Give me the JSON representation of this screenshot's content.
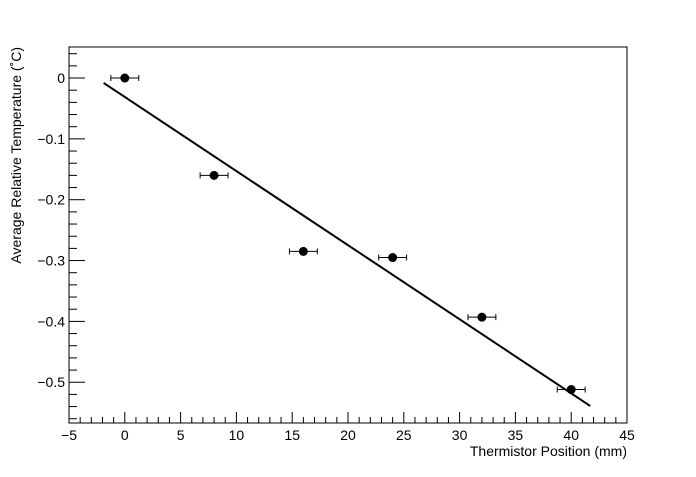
{
  "chart_data": {
    "type": "scatter",
    "title": "",
    "xlabel": "Thermistor Position (mm)",
    "ylabel": "Average Relative Temperature (˚C)",
    "xlim": [
      -5,
      45
    ],
    "ylim": [
      -0.567,
      0.051
    ],
    "xticks": [
      -5,
      0,
      5,
      10,
      15,
      20,
      25,
      30,
      35,
      40,
      45
    ],
    "xtick_labels": [
      "−5",
      "0",
      "5",
      "10",
      "15",
      "20",
      "25",
      "30",
      "35",
      "40",
      "45"
    ],
    "yticks": [
      0,
      -0.1,
      -0.2,
      -0.3,
      -0.4,
      -0.5
    ],
    "ytick_labels": [
      "0",
      "−0.1",
      "−0.2",
      "−0.3",
      "−0.4",
      "−0.5"
    ],
    "grid": false,
    "points": [
      {
        "x": 0,
        "y": 0,
        "xerr": 1.25
      },
      {
        "x": 8,
        "y": -0.16,
        "xerr": 1.25
      },
      {
        "x": 16,
        "y": -0.285,
        "xerr": 1.25
      },
      {
        "x": 24,
        "y": -0.295,
        "xerr": 1.25
      },
      {
        "x": 32,
        "y": -0.393,
        "xerr": 1.25
      },
      {
        "x": 40,
        "y": -0.512,
        "xerr": 1.25
      }
    ],
    "fit_line": {
      "x": [
        -1.9,
        41.7
      ],
      "y": [
        -0.008,
        -0.539
      ]
    },
    "colors": {
      "points": "#000000",
      "fit": "#000000"
    }
  }
}
